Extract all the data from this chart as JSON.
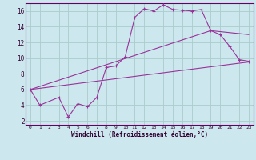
{
  "xlabel": "Windchill (Refroidissement éolien,°C)",
  "bg_color": "#cce8ee",
  "line_color": "#993399",
  "grid_color": "#aacccc",
  "x_ticks": [
    0,
    1,
    2,
    3,
    4,
    5,
    6,
    7,
    8,
    9,
    10,
    11,
    12,
    13,
    14,
    15,
    16,
    17,
    18,
    19,
    20,
    21,
    22,
    23
  ],
  "y_ticks": [
    2,
    4,
    6,
    8,
    10,
    12,
    14,
    16
  ],
  "xlim": [
    -0.5,
    23.5
  ],
  "ylim": [
    1.5,
    17.0
  ],
  "line1_x": [
    0,
    1,
    3,
    4,
    5,
    6,
    7,
    8,
    9,
    10,
    11,
    12,
    13,
    14,
    15,
    16,
    17,
    18,
    19,
    20,
    21,
    22,
    23
  ],
  "line1_y": [
    6.0,
    4.0,
    5.0,
    2.5,
    4.2,
    3.8,
    5.0,
    8.8,
    9.0,
    10.2,
    15.2,
    16.3,
    16.0,
    16.8,
    16.2,
    16.1,
    16.0,
    16.2,
    13.5,
    13.0,
    11.5,
    9.8,
    9.6
  ],
  "line2_x": [
    0,
    23
  ],
  "line2_y": [
    6.0,
    9.5
  ],
  "line3_x": [
    0,
    19,
    23
  ],
  "line3_y": [
    6.0,
    13.5,
    13.0
  ]
}
